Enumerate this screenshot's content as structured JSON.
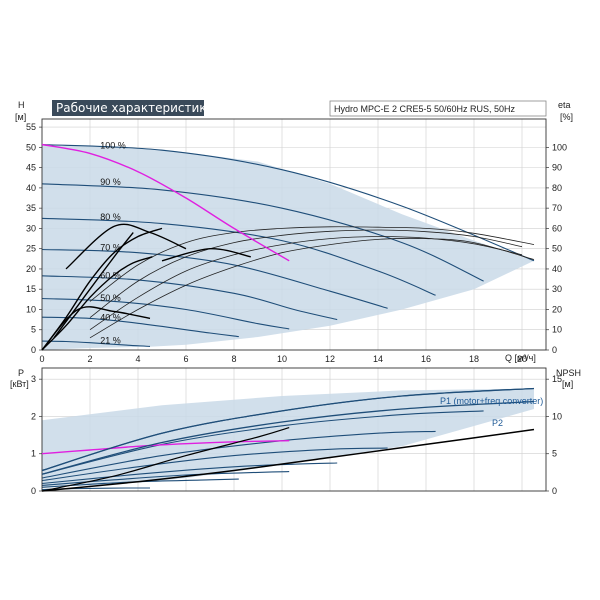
{
  "header": {
    "banner": "Рабочие характеристики",
    "model": "Hydro MPC-E 2 CRE5-5 50/60Hz RUS, 50Hz"
  },
  "colors": {
    "envelope": "#c9d9e8",
    "curve": "#1f4e79",
    "operating": "#000000",
    "magenta": "#e020e0",
    "grid": "#cfcfcf"
  },
  "chart_data": [
    {
      "type": "line",
      "name": "head",
      "xlabel": "Q [м³/ч]",
      "ylabel_left": "H",
      "ylabel_left_unit": "[м]",
      "ylabel_right": "eta",
      "ylabel_right_unit": "[%]",
      "xlim": [
        0,
        21
      ],
      "ylim": [
        0,
        57
      ],
      "y2lim": [
        0,
        114
      ],
      "x_ticks": [
        0,
        2,
        4,
        6,
        8,
        10,
        12,
        14,
        16,
        18,
        20
      ],
      "y_ticks": [
        0,
        5,
        10,
        15,
        20,
        25,
        30,
        35,
        40,
        45,
        50,
        55
      ],
      "y2_ticks": [
        0,
        10,
        20,
        30,
        40,
        50,
        60,
        70,
        80,
        90,
        100
      ],
      "speed_labels": [
        {
          "text": "100 %",
          "x": 1.3,
          "y": 50.5
        },
        {
          "text": "90 %",
          "x": 1.3,
          "y": 41.5
        },
        {
          "text": "80 %",
          "x": 1.3,
          "y": 32.8
        },
        {
          "text": "70 %",
          "x": 1.3,
          "y": 25.3
        },
        {
          "text": "60 %",
          "x": 1.3,
          "y": 18.4
        },
        {
          "text": "50 %",
          "x": 1.3,
          "y": 12.8
        },
        {
          "text": "40 %",
          "x": 1.3,
          "y": 8.0
        },
        {
          "text": "21 %",
          "x": 1.3,
          "y": 2.3
        }
      ],
      "envelope": [
        [
          0,
          50.7
        ],
        [
          5,
          49.5
        ],
        [
          9,
          46.5
        ],
        [
          12,
          41
        ],
        [
          15,
          33.5
        ],
        [
          18,
          27
        ],
        [
          20.5,
          22
        ],
        [
          20.5,
          22
        ],
        [
          18,
          15
        ],
        [
          15,
          10
        ],
        [
          12,
          6
        ],
        [
          9,
          3.2
        ],
        [
          6,
          1.3
        ],
        [
          4.5,
          0.8
        ],
        [
          2,
          0.5
        ],
        [
          0,
          0
        ]
      ],
      "speed_curves": [
        {
          "speed": 100,
          "x": [
            0,
            5,
            10,
            15,
            20.5
          ],
          "y": [
            50.7,
            49.3,
            44.5,
            35.5,
            22
          ]
        },
        {
          "speed": 90,
          "x": [
            0,
            5,
            10,
            15,
            18.4
          ],
          "y": [
            41,
            39.5,
            35,
            26.5,
            17
          ]
        },
        {
          "speed": 80,
          "x": [
            0,
            5,
            10,
            14,
            16.4
          ],
          "y": [
            32.5,
            31.2,
            27,
            19.5,
            13.5
          ]
        },
        {
          "speed": 70,
          "x": [
            0,
            4,
            8,
            12,
            14.4
          ],
          "y": [
            24.8,
            24,
            21,
            14.5,
            10.3
          ]
        },
        {
          "speed": 60,
          "x": [
            0,
            4,
            8,
            10.5,
            12.3
          ],
          "y": [
            18.3,
            17.3,
            14,
            10,
            7.5
          ]
        },
        {
          "speed": 50,
          "x": [
            0,
            3,
            6,
            9,
            10.3
          ],
          "y": [
            12.7,
            12,
            10,
            6.5,
            5.2
          ]
        },
        {
          "speed": 40,
          "x": [
            0,
            2,
            4,
            7,
            8.2
          ],
          "y": [
            8.1,
            7.8,
            6.6,
            4.2,
            3.3
          ]
        },
        {
          "speed": 21,
          "x": [
            0,
            1,
            2,
            3.5,
            4.5
          ],
          "y": [
            2.2,
            2.1,
            1.8,
            1.2,
            0.9
          ]
        }
      ],
      "magenta_curve": {
        "x": [
          0,
          2,
          4,
          6,
          8,
          10.3
        ],
        "y": [
          50.7,
          48.5,
          44,
          37.5,
          30,
          22
        ]
      },
      "operating_points": [
        {
          "x": [
            2,
            4,
            6,
            8,
            10,
            12,
            14,
            16,
            18,
            20.5
          ],
          "y": [
            3,
            10,
            16,
            20.5,
            24,
            26,
            27.3,
            27.5,
            26.5,
            22.3
          ]
        },
        {
          "x": [
            2,
            4,
            6,
            8,
            10,
            12,
            14,
            16,
            18,
            20
          ],
          "y": [
            5,
            13,
            19.5,
            23.5,
            26,
            27.5,
            28,
            27.6,
            26.2,
            23.5
          ]
        },
        {
          "x": [
            2,
            4,
            6,
            8,
            10,
            12,
            14,
            16,
            18,
            20
          ],
          "y": [
            8,
            17,
            23,
            26.5,
            28.3,
            29.3,
            29.6,
            29.2,
            28,
            25.5
          ]
        },
        {
          "x": [
            2,
            4,
            6,
            8,
            10,
            12,
            14,
            16,
            18,
            20.5
          ],
          "y": [
            12,
            21,
            26.5,
            29,
            30,
            30.4,
            30.3,
            30,
            28.8,
            26
          ]
        }
      ],
      "rising_curves": [
        {
          "x": [
            0,
            1,
            2,
            3,
            3.8,
            4.6
          ],
          "y": [
            0,
            6,
            13,
            18.5,
            21.5,
            23
          ]
        },
        {
          "x": [
            0,
            1,
            2,
            3,
            4,
            5
          ],
          "y": [
            0,
            8,
            17,
            24,
            28,
            30
          ]
        },
        {
          "x": [
            0.5,
            1.5,
            2.5,
            3.2,
            3.8
          ],
          "y": [
            3,
            11,
            19,
            24.5,
            29
          ]
        }
      ],
      "hump_curves": [
        {
          "x": [
            0,
            1.5,
            3,
            4.5
          ],
          "y": [
            0,
            10,
            9.5,
            7.8
          ]
        },
        {
          "x": [
            1,
            3,
            4.5,
            6
          ],
          "y": [
            20,
            30.5,
            29,
            25
          ]
        },
        {
          "x": [
            5,
            7,
            8.7
          ],
          "y": [
            22,
            25,
            23
          ]
        }
      ]
    },
    {
      "type": "line",
      "name": "power",
      "xlabel": "Q [м³/ч]",
      "ylabel_left": "P",
      "ylabel_left_unit": "[кВт]",
      "ylabel_right": "NPSH",
      "ylabel_right_unit": "[м]",
      "xlim": [
        0,
        21
      ],
      "ylim": [
        0,
        3.3
      ],
      "y2lim": [
        0,
        16.5
      ],
      "y_ticks": [
        0,
        1,
        2,
        3
      ],
      "y2_ticks": [
        0,
        5,
        10,
        15
      ],
      "series": [
        {
          "name": "P1 (motor+freq.converter)",
          "x": [
            0,
            5,
            10,
            15,
            20.5
          ],
          "y": [
            0.55,
            1.55,
            2.15,
            2.55,
            2.75
          ]
        },
        {
          "name": "P2",
          "x": [
            0,
            5,
            10,
            15,
            20.5
          ],
          "y": [
            0.45,
            1.3,
            1.85,
            2.2,
            2.4
          ]
        }
      ],
      "envelope": [
        [
          0,
          1.9
        ],
        [
          5,
          2.3
        ],
        [
          10,
          2.55
        ],
        [
          15,
          2.7
        ],
        [
          20.5,
          2.75
        ],
        [
          20.5,
          2.2
        ],
        [
          15,
          1.2
        ],
        [
          10,
          0.7
        ],
        [
          6,
          0.35
        ],
        [
          4.5,
          0.25
        ],
        [
          2,
          0.15
        ],
        [
          0,
          0.1
        ]
      ],
      "speed_curves": [
        {
          "x": [
            0,
            5,
            10,
            15,
            20.5
          ],
          "y": [
            0.55,
            1.55,
            2.15,
            2.55,
            2.75
          ]
        },
        {
          "x": [
            0,
            5,
            10,
            15,
            18.4
          ],
          "y": [
            0.45,
            1.25,
            1.75,
            2.05,
            2.15
          ]
        },
        {
          "x": [
            0,
            5,
            10,
            14,
            16.4
          ],
          "y": [
            0.35,
            0.95,
            1.35,
            1.55,
            1.6
          ]
        },
        {
          "x": [
            0,
            4,
            8,
            12,
            14.4
          ],
          "y": [
            0.28,
            0.65,
            0.95,
            1.12,
            1.15
          ]
        },
        {
          "x": [
            0,
            4,
            8,
            10.5,
            12.3
          ],
          "y": [
            0.2,
            0.45,
            0.65,
            0.72,
            0.75
          ]
        },
        {
          "x": [
            0,
            3,
            6,
            9,
            10.3
          ],
          "y": [
            0.15,
            0.3,
            0.43,
            0.5,
            0.52
          ]
        },
        {
          "x": [
            0,
            2,
            4,
            7,
            8.2
          ],
          "y": [
            0.1,
            0.18,
            0.25,
            0.3,
            0.32
          ]
        },
        {
          "x": [
            0,
            1,
            2,
            3.5,
            4.5
          ],
          "y": [
            0.04,
            0.06,
            0.07,
            0.08,
            0.08
          ]
        }
      ],
      "magenta_curve": {
        "x": [
          0,
          2,
          4,
          6,
          8,
          10.3
        ],
        "y": [
          1.0,
          1.1,
          1.2,
          1.27,
          1.32,
          1.35
        ]
      },
      "npsh_curve": {
        "x": [
          0,
          4,
          8,
          12,
          16,
          20.5
        ],
        "y": [
          0,
          0.25,
          0.55,
          0.9,
          1.25,
          1.65
        ]
      },
      "rising_curve": {
        "x": [
          0,
          3,
          6,
          9,
          10.3
        ],
        "y": [
          0,
          0.4,
          0.95,
          1.45,
          1.7
        ]
      }
    }
  ]
}
